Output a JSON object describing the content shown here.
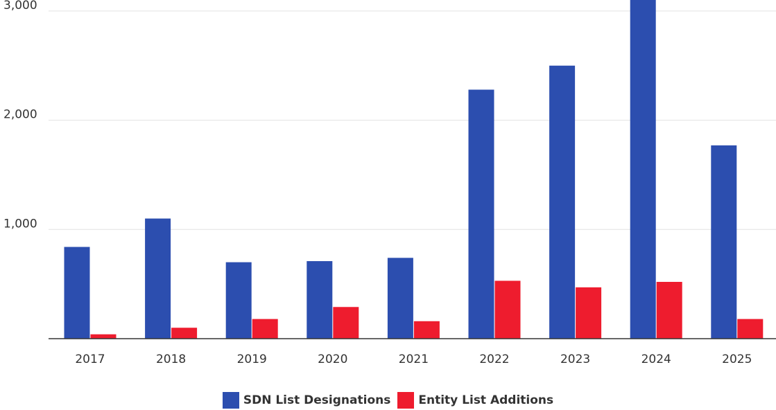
{
  "chart_data": {
    "type": "bar",
    "title": "",
    "xlabel": "",
    "ylabel": "",
    "categories": [
      "2017",
      "2018",
      "2019",
      "2020",
      "2021",
      "2022",
      "2023",
      "2024",
      "2025"
    ],
    "series": [
      {
        "name": "SDN List Designations",
        "color": "#2c4eaf",
        "values": [
          840,
          1100,
          700,
          710,
          740,
          2280,
          2500,
          3130,
          1770
        ]
      },
      {
        "name": "Entity List Additions",
        "color": "#ee1c2e",
        "values": [
          40,
          100,
          180,
          290,
          160,
          530,
          470,
          520,
          180
        ]
      }
    ],
    "yticks": [
      {
        "value": 1000,
        "label": "1,000"
      },
      {
        "value": 2000,
        "label": "2,000"
      },
      {
        "value": 3000,
        "label": "3,000"
      }
    ],
    "ylim": [
      0,
      3120
    ],
    "grid": true,
    "legend_position": "bottom-center"
  }
}
